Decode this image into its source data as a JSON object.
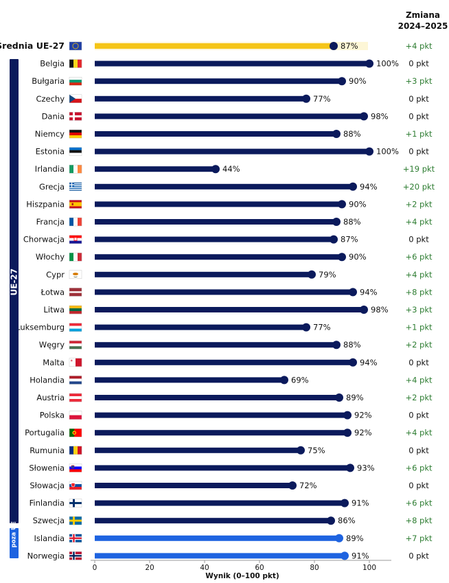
{
  "header": {
    "change_line1": "Zmiana",
    "change_line2": "2024–2025"
  },
  "groups": {
    "eu_label": "UE-27",
    "non_eu_label": "poza UE"
  },
  "colors": {
    "eu_bar": "#0b1a5c",
    "average_bar": "#f5c518",
    "non_eu_bar": "#1e63e0",
    "change_positive": "#2e7d32",
    "change_zero": "#111111"
  },
  "chart_data": {
    "type": "bar",
    "orientation": "horizontal",
    "xlabel": "Wynik (0–100 pkt)",
    "xlim": [
      0,
      100
    ],
    "xticks": [
      0,
      20,
      40,
      60,
      80,
      100
    ],
    "value_suffix": "%",
    "rows": [
      {
        "country": "Średnia UE-27",
        "flag": "eu",
        "value": 87,
        "change": "+4 pkt",
        "group": "average"
      },
      {
        "country": "Belgia",
        "flag": "be",
        "value": 100,
        "change": "0 pkt",
        "group": "eu"
      },
      {
        "country": "Bułgaria",
        "flag": "bg",
        "value": 90,
        "change": "+3 pkt",
        "group": "eu"
      },
      {
        "country": "Czechy",
        "flag": "cz",
        "value": 77,
        "change": "0 pkt",
        "group": "eu"
      },
      {
        "country": "Dania",
        "flag": "dk",
        "value": 98,
        "change": "0 pkt",
        "group": "eu"
      },
      {
        "country": "Niemcy",
        "flag": "de",
        "value": 88,
        "change": "+1 pkt",
        "group": "eu"
      },
      {
        "country": "Estonia",
        "flag": "ee",
        "value": 100,
        "change": "0 pkt",
        "group": "eu"
      },
      {
        "country": "Irlandia",
        "flag": "ie",
        "value": 44,
        "change": "+19 pkt",
        "group": "eu"
      },
      {
        "country": "Grecja",
        "flag": "gr",
        "value": 94,
        "change": "+20 pkt",
        "group": "eu"
      },
      {
        "country": "Hiszpania",
        "flag": "es",
        "value": 90,
        "change": "+2 pkt",
        "group": "eu"
      },
      {
        "country": "Francja",
        "flag": "fr",
        "value": 88,
        "change": "+4 pkt",
        "group": "eu"
      },
      {
        "country": "Chorwacja",
        "flag": "hr",
        "value": 87,
        "change": "0 pkt",
        "group": "eu"
      },
      {
        "country": "Włochy",
        "flag": "it",
        "value": 90,
        "change": "+6 pkt",
        "group": "eu"
      },
      {
        "country": "Cypr",
        "flag": "cy",
        "value": 79,
        "change": "+4 pkt",
        "group": "eu"
      },
      {
        "country": "Łotwa",
        "flag": "lv",
        "value": 94,
        "change": "+8 pkt",
        "group": "eu"
      },
      {
        "country": "Litwa",
        "flag": "lt",
        "value": 98,
        "change": "+3 pkt",
        "group": "eu"
      },
      {
        "country": "Luksemburg",
        "flag": "lu",
        "value": 77,
        "change": "+1 pkt",
        "group": "eu"
      },
      {
        "country": "Węgry",
        "flag": "hu",
        "value": 88,
        "change": "+2 pkt",
        "group": "eu"
      },
      {
        "country": "Malta",
        "flag": "mt",
        "value": 94,
        "change": "0 pkt",
        "group": "eu"
      },
      {
        "country": "Holandia",
        "flag": "nl",
        "value": 69,
        "change": "+4 pkt",
        "group": "eu"
      },
      {
        "country": "Austria",
        "flag": "at",
        "value": 89,
        "change": "+2 pkt",
        "group": "eu"
      },
      {
        "country": "Polska",
        "flag": "pl",
        "value": 92,
        "change": "0 pkt",
        "group": "eu"
      },
      {
        "country": "Portugalia",
        "flag": "pt",
        "value": 92,
        "change": "+4 pkt",
        "group": "eu"
      },
      {
        "country": "Rumunia",
        "flag": "ro",
        "value": 75,
        "change": "0 pkt",
        "group": "eu"
      },
      {
        "country": "Słowenia",
        "flag": "si",
        "value": 93,
        "change": "+6 pkt",
        "group": "eu"
      },
      {
        "country": "Słowacja",
        "flag": "sk",
        "value": 72,
        "change": "0 pkt",
        "group": "eu"
      },
      {
        "country": "Finlandia",
        "flag": "fi",
        "value": 91,
        "change": "+6 pkt",
        "group": "eu"
      },
      {
        "country": "Szwecja",
        "flag": "se",
        "value": 86,
        "change": "+8 pkt",
        "group": "eu"
      },
      {
        "country": "Islandia",
        "flag": "is",
        "value": 89,
        "change": "+7 pkt",
        "group": "non_eu"
      },
      {
        "country": "Norwegia",
        "flag": "no",
        "value": 91,
        "change": "0 pkt",
        "group": "non_eu"
      }
    ]
  }
}
